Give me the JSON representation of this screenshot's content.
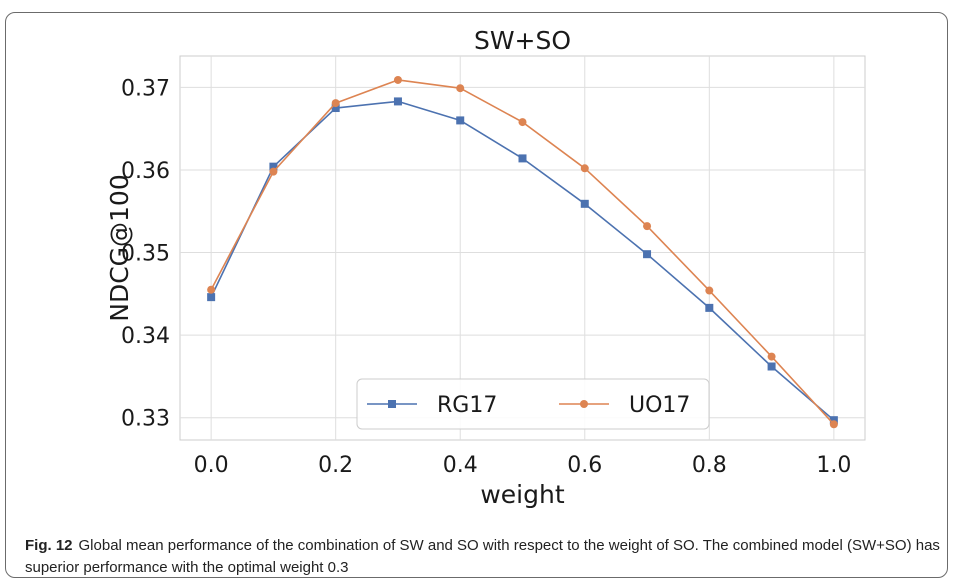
{
  "chart_data": {
    "type": "line",
    "title": "SW+SO",
    "xlabel": "weight",
    "ylabel": "NDCG@100",
    "x": [
      0.0,
      0.1,
      0.2,
      0.3,
      0.4,
      0.5,
      0.6,
      0.7,
      0.8,
      0.9,
      1.0
    ],
    "xticks": [
      "0.0",
      "0.2",
      "0.4",
      "0.6",
      "0.8",
      "1.0"
    ],
    "xtick_values": [
      0.0,
      0.2,
      0.4,
      0.6,
      0.8,
      1.0
    ],
    "yticks": [
      "0.33",
      "0.34",
      "0.35",
      "0.36",
      "0.37"
    ],
    "ytick_values": [
      0.33,
      0.34,
      0.35,
      0.36,
      0.37
    ],
    "xlim": [
      -0.05,
      1.05
    ],
    "ylim": [
      0.3273,
      0.3738
    ],
    "grid": true,
    "legend_position": "lower center",
    "series": [
      {
        "name": "RG17",
        "color": "#4c72b0",
        "marker": "square",
        "values": [
          0.3446,
          0.3604,
          0.3675,
          0.3683,
          0.366,
          0.3614,
          0.3559,
          0.3498,
          0.3433,
          0.3362,
          0.3297
        ]
      },
      {
        "name": "UO17",
        "color": "#dd8452",
        "marker": "circle",
        "values": [
          0.3455,
          0.3598,
          0.3681,
          0.3709,
          0.3699,
          0.3658,
          0.3602,
          0.3532,
          0.3454,
          0.3374,
          0.3292
        ]
      }
    ]
  },
  "caption": {
    "label": "Fig. 12",
    "text": "Global mean performance of the combination of SW and SO with respect to the weight of SO. The combined model (SW+SO) has superior performance with the optimal weight 0.3"
  }
}
